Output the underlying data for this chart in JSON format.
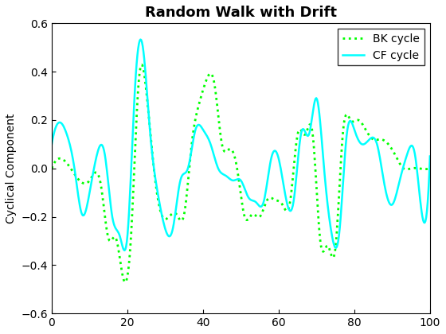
{
  "title": "Random Walk with Drift",
  "ylabel": "Cyclical Component",
  "xlabel": "",
  "xlim": [
    0,
    100
  ],
  "ylim": [
    -0.6,
    0.6
  ],
  "bk_color": "#00ff00",
  "cf_color": "#00ffff",
  "bk_label": "BK cycle",
  "cf_label": "CF cycle",
  "bk_linestyle": "dotted",
  "cf_linestyle": "solid",
  "bk_linewidth": 2.0,
  "cf_linewidth": 1.8,
  "title_fontsize": 13,
  "legend_fontsize": 10,
  "background_color": "#ffffff",
  "bk_x": [
    0,
    5,
    10,
    13,
    15,
    17,
    19,
    21,
    23,
    25,
    27,
    29,
    31,
    33,
    35,
    37,
    39,
    41,
    43,
    45,
    47,
    49,
    51,
    53,
    55,
    57,
    59,
    61,
    63,
    65,
    67,
    69,
    71,
    73,
    75,
    77,
    79,
    81,
    83,
    85,
    87,
    89,
    91,
    93,
    95,
    97,
    100
  ],
  "bk_y": [
    0.0,
    0.0,
    -0.05,
    -0.07,
    -0.29,
    -0.29,
    -0.46,
    -0.27,
    0.36,
    0.32,
    0.0,
    -0.19,
    -0.2,
    -0.19,
    -0.19,
    0.1,
    0.27,
    0.37,
    0.35,
    0.1,
    0.08,
    0.0,
    -0.2,
    -0.19,
    -0.2,
    -0.13,
    -0.13,
    -0.15,
    -0.14,
    0.14,
    0.14,
    0.14,
    -0.3,
    -0.32,
    -0.33,
    0.15,
    0.2,
    0.2,
    0.16,
    0.12,
    0.12,
    0.1,
    0.05,
    0.0,
    0.0,
    0.0,
    0.0
  ],
  "cf_x": [
    0,
    2,
    4,
    6,
    8,
    10,
    12,
    14,
    16,
    18,
    20,
    22,
    24,
    26,
    28,
    30,
    32,
    34,
    36,
    38,
    40,
    42,
    44,
    46,
    48,
    50,
    52,
    54,
    56,
    58,
    60,
    62,
    64,
    66,
    68,
    70,
    72,
    74,
    76,
    78,
    80,
    82,
    84,
    86,
    88,
    90,
    92,
    94,
    96,
    98,
    100
  ],
  "cf_y": [
    0.1,
    0.19,
    0.14,
    0.0,
    -0.19,
    -0.1,
    0.06,
    0.06,
    -0.2,
    -0.28,
    -0.28,
    0.33,
    0.51,
    0.15,
    -0.1,
    -0.25,
    -0.25,
    -0.05,
    0.0,
    0.16,
    0.16,
    0.1,
    0.0,
    -0.03,
    -0.05,
    -0.05,
    -0.12,
    -0.14,
    -0.14,
    0.04,
    0.04,
    -0.13,
    -0.13,
    0.15,
    0.14,
    0.29,
    0.0,
    -0.27,
    -0.27,
    0.14,
    0.16,
    0.1,
    0.12,
    0.1,
    -0.07,
    -0.15,
    -0.05,
    0.06,
    0.06,
    -0.2,
    0.05
  ]
}
